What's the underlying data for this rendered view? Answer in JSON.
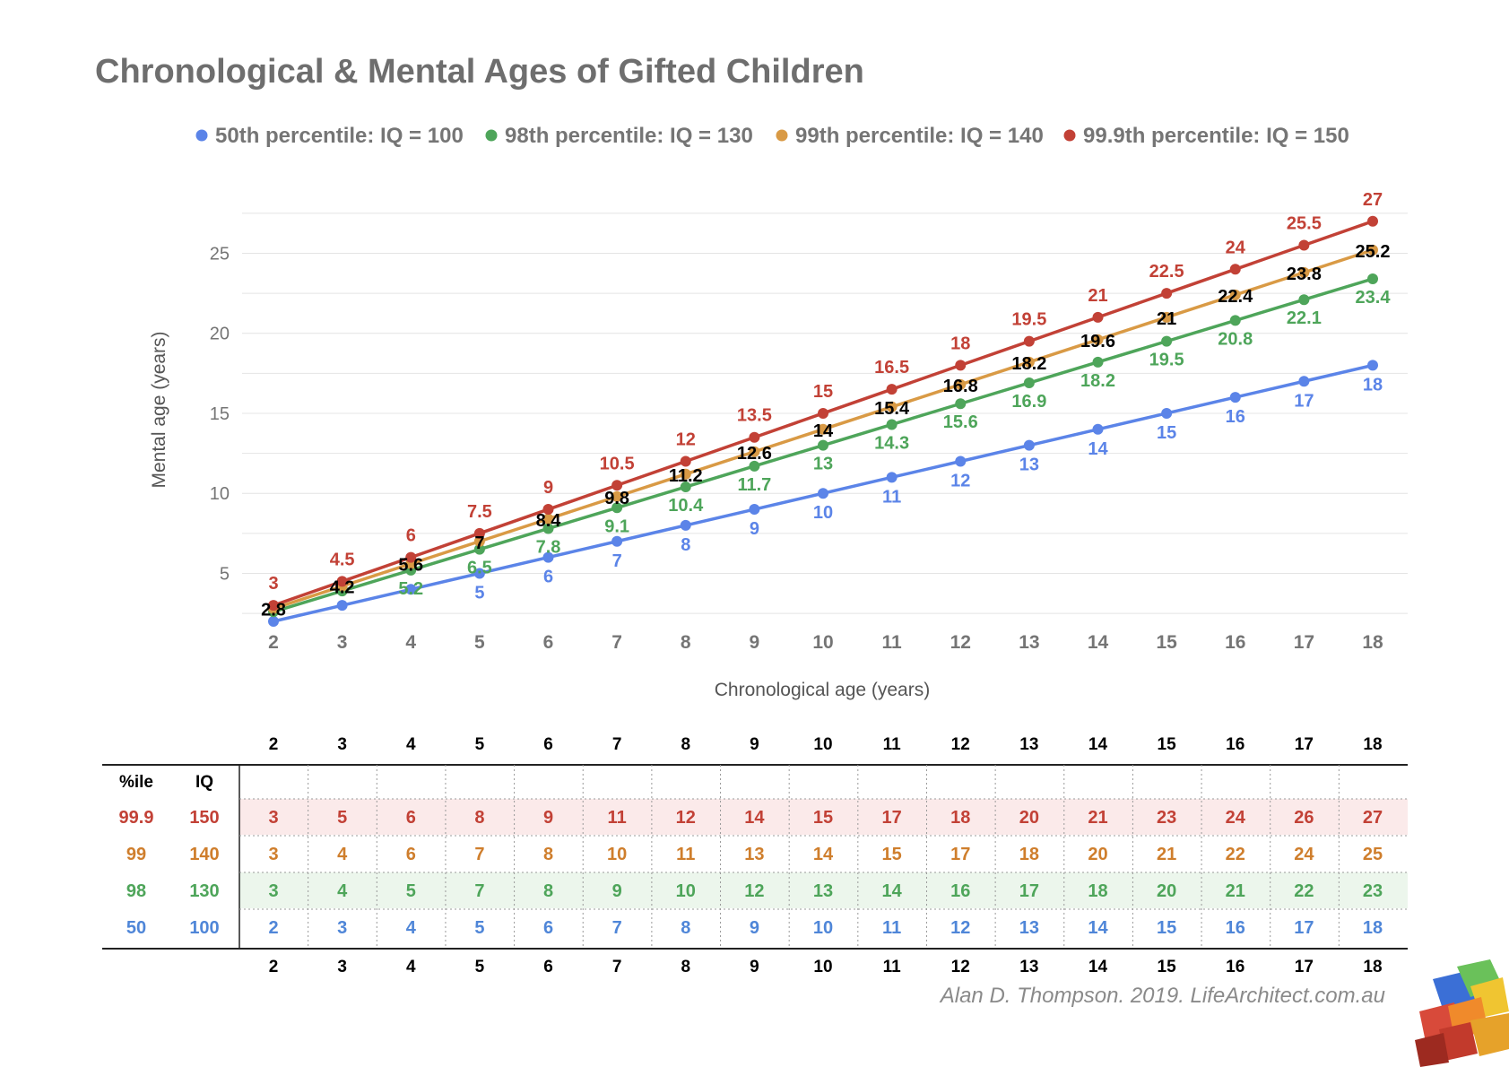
{
  "chart_data": {
    "type": "line",
    "title": "Chronological & Mental Ages of Gifted Children",
    "xlabel": "Chronological age (years)",
    "ylabel": "Mental age (years)",
    "x": [
      2,
      3,
      4,
      5,
      6,
      7,
      8,
      9,
      10,
      11,
      12,
      13,
      14,
      15,
      16,
      17,
      18
    ],
    "x_ticks": [
      "2",
      "3",
      "4",
      "5",
      "6",
      "7",
      "8",
      "9",
      "10",
      "11",
      "12",
      "13",
      "14",
      "15",
      "16",
      "17",
      "18"
    ],
    "y_ticks": [
      "5",
      "10",
      "15",
      "20",
      "25"
    ],
    "xlim": [
      2,
      18
    ],
    "ylim": [
      2,
      27
    ],
    "legend_position": "top",
    "grid": true,
    "series": [
      {
        "name": "50th percentile: IQ = 100",
        "color": "#5b84e8",
        "values": [
          2,
          3,
          4,
          5,
          6,
          7,
          8,
          9,
          10,
          11,
          12,
          13,
          14,
          15,
          16,
          17,
          18
        ],
        "labels": [
          "",
          "",
          "",
          "5",
          "6",
          "7",
          "8",
          "9",
          "10",
          "11",
          "12",
          "13",
          "14",
          "15",
          "16",
          "17",
          "18"
        ]
      },
      {
        "name": "98th percentile: IQ = 130",
        "color": "#4ea55a",
        "values": [
          2.6,
          3.9,
          5.2,
          6.5,
          7.8,
          9.1,
          10.4,
          11.7,
          13,
          14.3,
          15.6,
          16.9,
          18.2,
          19.5,
          20.8,
          22.1,
          23.4
        ],
        "labels": [
          "",
          "",
          "5.2",
          "6.5",
          "7.8",
          "9.1",
          "10.4",
          "11.7",
          "13",
          "14.3",
          "15.6",
          "16.9",
          "18.2",
          "19.5",
          "20.8",
          "22.1",
          "23.4"
        ]
      },
      {
        "name": "99th percentile: IQ = 140",
        "color": "#d99a45",
        "values": [
          2.8,
          4.2,
          5.6,
          7,
          8.4,
          9.8,
          11.2,
          12.6,
          14,
          15.4,
          16.8,
          18.2,
          19.6,
          21,
          22.4,
          23.8,
          25.2
        ],
        "labels": [
          "2.8",
          "4.2",
          "5.6",
          "7",
          "8.4",
          "9.8",
          "11.2",
          "12.6",
          "14",
          "15.4",
          "16.8",
          "18.2",
          "19.6",
          "21",
          "22.4",
          "23.8",
          "25.2"
        ]
      },
      {
        "name": "99.9th percentile: IQ = 150",
        "color": "#c24136",
        "values": [
          3,
          4.5,
          6,
          7.5,
          9,
          10.5,
          12,
          13.5,
          15,
          16.5,
          18,
          19.5,
          21,
          22.5,
          24,
          25.5,
          27
        ],
        "labels": [
          "3",
          "4.5",
          "6",
          "7.5",
          "9",
          "10.5",
          "12",
          "13.5",
          "15",
          "16.5",
          "18",
          "19.5",
          "21",
          "22.5",
          "24",
          "25.5",
          "27"
        ]
      }
    ]
  },
  "table": {
    "header_ages": [
      "2",
      "3",
      "4",
      "5",
      "6",
      "7",
      "8",
      "9",
      "10",
      "11",
      "12",
      "13",
      "14",
      "15",
      "16",
      "17",
      "18"
    ],
    "col_headers": {
      "percentile": "%ile",
      "iq": "IQ"
    },
    "rows": [
      {
        "percentile": "99.9",
        "iq": "150",
        "color": "#c24136",
        "bg": "#fbeaea",
        "cells": [
          "3",
          "5",
          "6",
          "8",
          "9",
          "11",
          "12",
          "14",
          "15",
          "17",
          "18",
          "20",
          "21",
          "23",
          "24",
          "26",
          "27"
        ]
      },
      {
        "percentile": "99",
        "iq": "140",
        "color": "#cf7e2c",
        "bg": "#ffffff",
        "cells": [
          "3",
          "4",
          "6",
          "7",
          "8",
          "10",
          "11",
          "13",
          "14",
          "15",
          "17",
          "18",
          "20",
          "21",
          "22",
          "24",
          "25"
        ]
      },
      {
        "percentile": "98",
        "iq": "130",
        "color": "#4ea55a",
        "bg": "#ecf6ec",
        "cells": [
          "3",
          "4",
          "5",
          "7",
          "8",
          "9",
          "10",
          "12",
          "13",
          "14",
          "16",
          "17",
          "18",
          "20",
          "21",
          "22",
          "23"
        ]
      },
      {
        "percentile": "50",
        "iq": "100",
        "color": "#4f86d8",
        "bg": "#ffffff",
        "cells": [
          "2",
          "3",
          "4",
          "5",
          "6",
          "7",
          "8",
          "9",
          "10",
          "11",
          "12",
          "13",
          "14",
          "15",
          "16",
          "17",
          "18"
        ]
      }
    ],
    "footer_ages": [
      "2",
      "3",
      "4",
      "5",
      "6",
      "7",
      "8",
      "9",
      "10",
      "11",
      "12",
      "13",
      "14",
      "15",
      "16",
      "17",
      "18"
    ]
  },
  "credit": "Alan D. Thompson. 2019. LifeArchitect.com.au",
  "logo": {
    "icon": "colored-cubes-logo-icon"
  }
}
